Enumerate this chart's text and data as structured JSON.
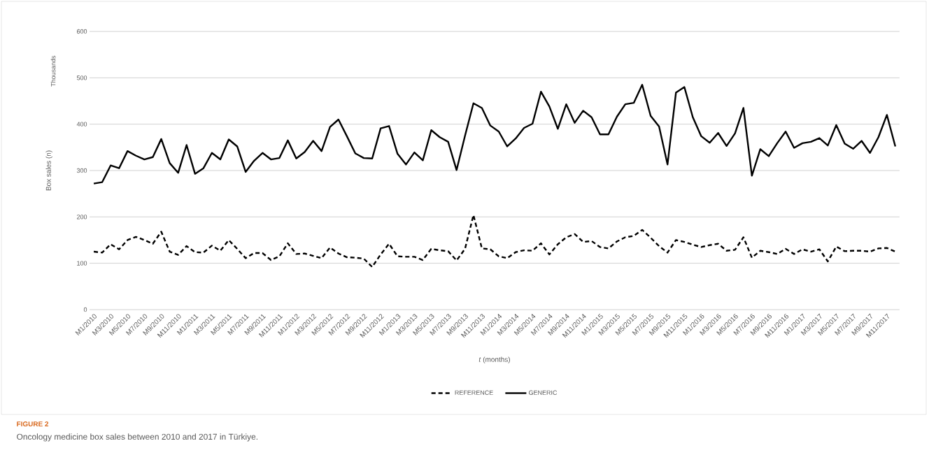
{
  "chart_data": {
    "type": "line",
    "xlabel": "*t* (months)",
    "ylabel": "Box sales (n)",
    "annotations": [
      "Thousands",
      "FIGURE 2",
      "Oncology medicine box sales between 2010 and 2017 in Türkiye."
    ],
    "categories": [
      "M1/2010",
      null,
      "M3/2010",
      null,
      "M5/2010",
      null,
      "M7/2010",
      null,
      "M9/2010",
      null,
      "M11/2010",
      null,
      "M1/2011",
      null,
      "M3/2011",
      null,
      "M5/2011",
      null,
      "M7/2011",
      null,
      "M9/2011",
      null,
      "M11/2011",
      null,
      "M1/2012",
      null,
      "M3/2012",
      null,
      "M5/2012",
      null,
      "M7/2012",
      null,
      "M9/2012",
      null,
      "M11/2012",
      null,
      "M1/2013",
      null,
      "M3/2013",
      null,
      "M5/2013",
      null,
      "M7/2013",
      null,
      "M9/2013",
      null,
      "M11/2013",
      null,
      "M1/2014",
      null,
      "M3/2014",
      null,
      "M5/2014",
      null,
      "M7/2014",
      null,
      "M9/2014",
      null,
      "M11/2014",
      null,
      "M1/2015",
      null,
      "M3/2015",
      null,
      "M5/2015",
      null,
      "M7/2015",
      null,
      "M9/2015",
      null,
      "M11/2015",
      null,
      "M1/2016",
      null,
      "M3/2016",
      null,
      "M5/2016",
      null,
      "M7/2016",
      null,
      "M9/2016",
      null,
      "M11/2016",
      null,
      "M1/2017",
      null,
      "M3/2017",
      null,
      "M5/2017",
      null,
      "M7/2017",
      null,
      "M9/2017",
      null,
      "M11/2017",
      null
    ],
    "series": [
      {
        "name": "REFERENCE",
        "color": "#000000",
        "line_style": "dashed",
        "values": [
          125,
          123,
          141,
          130,
          150,
          157,
          150,
          142,
          168,
          125,
          118,
          137,
          124,
          123,
          138,
          127,
          150,
          131,
          111,
          122,
          122,
          107,
          115,
          143,
          120,
          121,
          116,
          111,
          134,
          121,
          113,
          112,
          110,
          92,
          119,
          142,
          115,
          114,
          114,
          107,
          131,
          128,
          126,
          106,
          131,
          204,
          132,
          130,
          115,
          111,
          124,
          128,
          127,
          143,
          119,
          141,
          156,
          163,
          146,
          148,
          135,
          132,
          147,
          156,
          159,
          172,
          155,
          137,
          123,
          150,
          146,
          140,
          135,
          139,
          142,
          127,
          129,
          156,
          112,
          127,
          124,
          120,
          131,
          120,
          130,
          125,
          130,
          104,
          136,
          126,
          127,
          127,
          125,
          132,
          133,
          125
        ]
      },
      {
        "name": "GENERIC",
        "color": "#000000",
        "line_style": "solid",
        "values": [
          272,
          275,
          311,
          305,
          342,
          332,
          324,
          329,
          368,
          316,
          295,
          355,
          293,
          305,
          338,
          324,
          367,
          352,
          297,
          321,
          338,
          324,
          327,
          365,
          326,
          340,
          364,
          342,
          394,
          410,
          374,
          337,
          327,
          326,
          391,
          396,
          336,
          313,
          339,
          322,
          387,
          372,
          362,
          301,
          375,
          445,
          435,
          397,
          384,
          352,
          369,
          392,
          401,
          470,
          438,
          390,
          443,
          403,
          429,
          415,
          378,
          378,
          416,
          443,
          446,
          485,
          418,
          395,
          313,
          468,
          480,
          415,
          374,
          360,
          381,
          353,
          380,
          435,
          289,
          346,
          331,
          359,
          384,
          349,
          359,
          362,
          370,
          354,
          398,
          358,
          347,
          364,
          338,
          372,
          420,
          352
        ]
      }
    ],
    "ylim": [
      0,
      600
    ],
    "yticks": [
      0,
      100,
      200,
      300,
      400,
      500,
      600
    ],
    "grid": "y",
    "legend": "bottom"
  }
}
